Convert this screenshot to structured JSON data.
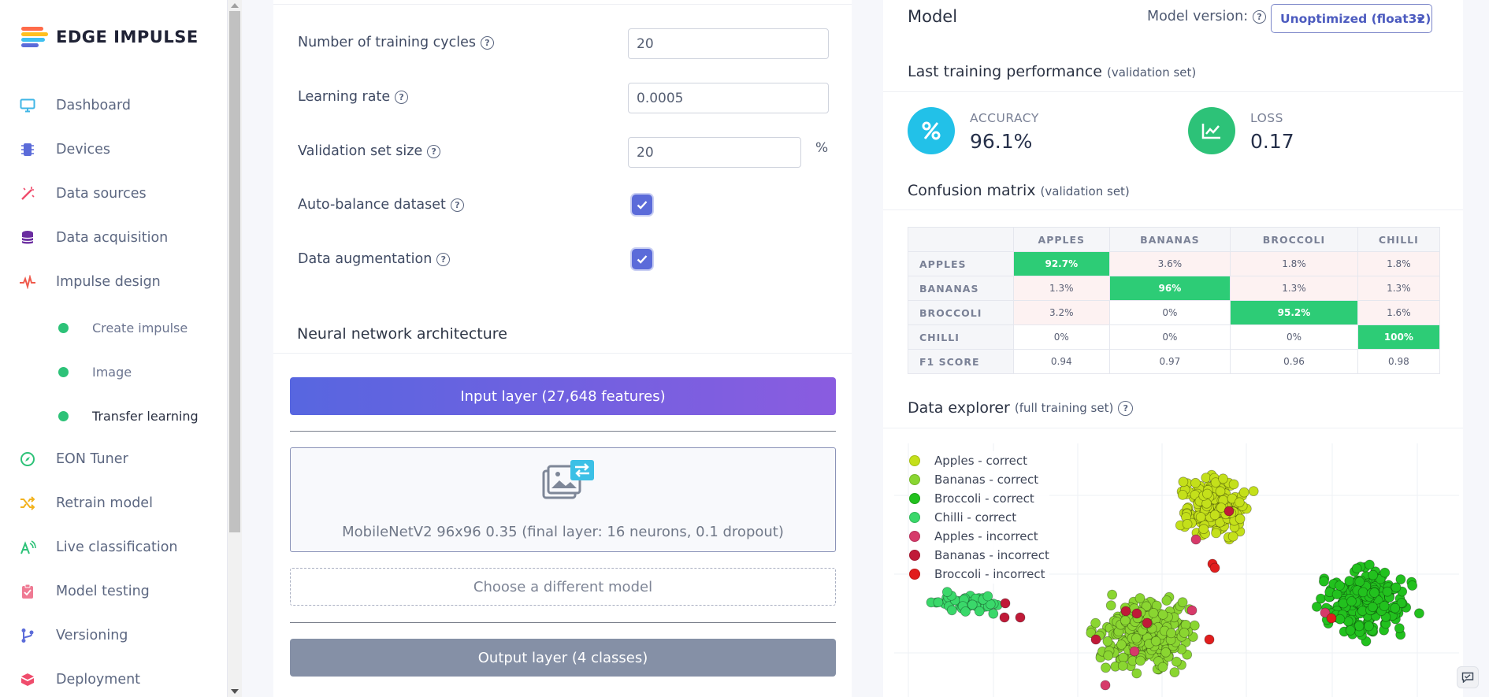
{
  "brand": {
    "name": "EDGE IMPULSE",
    "stripe_colors": [
      "#ff6b4a",
      "#ffbf1f",
      "#3fc0f0",
      "#5b6bd9"
    ]
  },
  "nav": [
    {
      "label": "Dashboard",
      "icon": "monitor-icon",
      "color": "#3fb6e6"
    },
    {
      "label": "Devices",
      "icon": "chip-icon",
      "color": "#5b6bd9"
    },
    {
      "label": "Data sources",
      "icon": "wand-icon",
      "color": "#ef4c6c"
    },
    {
      "label": "Data acquisition",
      "icon": "database-icon",
      "color": "#6a2ca0"
    },
    {
      "label": "Impulse design",
      "icon": "pulse-icon",
      "color": "#ef5a4c"
    },
    {
      "label": "EON Tuner",
      "icon": "compass-icon",
      "color": "#2dc278"
    },
    {
      "label": "Retrain model",
      "icon": "shuffle-icon",
      "color": "#f2b21d"
    },
    {
      "label": "Live classification",
      "icon": "broadcast-icon",
      "color": "#2dc278"
    },
    {
      "label": "Model testing",
      "icon": "clipboard-icon",
      "color": "#ef7a93"
    },
    {
      "label": "Versioning",
      "icon": "branch-icon",
      "color": "#5b6bd9"
    },
    {
      "label": "Deployment",
      "icon": "box-icon",
      "color": "#ef4c6c"
    }
  ],
  "subnav": [
    {
      "label": "Create impulse"
    },
    {
      "label": "Image"
    },
    {
      "label": "Transfer learning"
    }
  ],
  "settings": {
    "training_cycles": {
      "label": "Number of training cycles",
      "value": "20"
    },
    "learning_rate": {
      "label": "Learning rate",
      "value": "0.0005"
    },
    "validation_size": {
      "label": "Validation set size",
      "value": "20",
      "unit": "%"
    },
    "auto_balance": {
      "label": "Auto-balance dataset",
      "checked": true
    },
    "augmentation": {
      "label": "Data augmentation",
      "checked": true
    }
  },
  "architecture": {
    "title": "Neural network architecture",
    "input_layer": "Input layer (27,648 features)",
    "model": "MobileNetV2 96x96 0.35 (final layer: 16 neurons, 0.1 dropout)",
    "choose": "Choose a different model",
    "output_layer": "Output layer (4 classes)"
  },
  "model_panel": {
    "title": "Model",
    "version_label": "Model version:",
    "version_value": "Unoptimized (float32)",
    "perf_title": "Last training performance",
    "perf_sub": "(validation set)",
    "accuracy_label": "ACCURACY",
    "accuracy_value": "96.1%",
    "loss_label": "LOSS",
    "loss_value": "0.17",
    "cm_title": "Confusion matrix",
    "cm_sub": "(validation set)",
    "explorer_title": "Data explorer",
    "explorer_sub": "(full training set)"
  },
  "confusion": {
    "columns": [
      "APPLES",
      "BANANAS",
      "BROCCOLI",
      "CHILLI"
    ],
    "rows": [
      {
        "label": "APPLES",
        "cells": [
          "92.7%",
          "3.6%",
          "1.8%",
          "1.8%"
        ]
      },
      {
        "label": "BANANAS",
        "cells": [
          "1.3%",
          "96%",
          "1.3%",
          "1.3%"
        ]
      },
      {
        "label": "BROCCOLI",
        "cells": [
          "3.2%",
          "0%",
          "95.2%",
          "1.6%"
        ]
      },
      {
        "label": "CHILLI",
        "cells": [
          "0%",
          "0%",
          "0%",
          "100%"
        ]
      },
      {
        "label": "F1 SCORE",
        "cells": [
          "0.94",
          "0.97",
          "0.96",
          "0.98"
        ]
      }
    ]
  },
  "legend": [
    {
      "label": "Apples - correct",
      "color": "#c4e01a"
    },
    {
      "label": "Bananas - correct",
      "color": "#8ad631"
    },
    {
      "label": "Broccoli - correct",
      "color": "#22c11e"
    },
    {
      "label": "Chilli - correct",
      "color": "#3ad86a"
    },
    {
      "label": "Apples - incorrect",
      "color": "#d63a6a"
    },
    {
      "label": "Bananas - incorrect",
      "color": "#c01a38"
    },
    {
      "label": "Broccoli - incorrect",
      "color": "#e11d1d"
    }
  ]
}
